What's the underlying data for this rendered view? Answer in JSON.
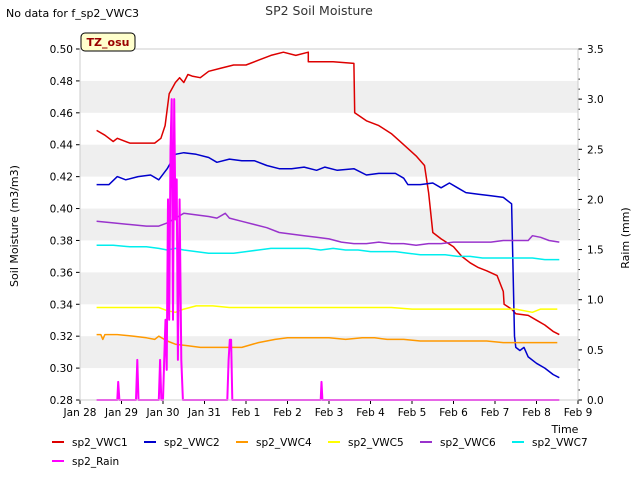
{
  "chart_data": {
    "type": "line",
    "title": "SP2 Soil Moisture",
    "no_data_note": "No data for f_sp2_VWC3",
    "site_badge": "TZ_osu",
    "xlabel": "Time",
    "ylabel": "Soil Moisture (m3/m3)",
    "y2label": "Raim (mm)",
    "xlim": [
      0,
      12
    ],
    "ylim": [
      0.28,
      0.5
    ],
    "y2lim": [
      0.0,
      3.5
    ],
    "grid": "horizontal bands",
    "legend_position": "bottom",
    "x_ticks": [
      {
        "x": 0,
        "label": "Jan 28"
      },
      {
        "x": 1,
        "label": "Jan 29"
      },
      {
        "x": 2,
        "label": "Jan 30"
      },
      {
        "x": 3,
        "label": "Jan 31"
      },
      {
        "x": 4,
        "label": "Feb 1"
      },
      {
        "x": 5,
        "label": "Feb 2"
      },
      {
        "x": 6,
        "label": "Feb 3"
      },
      {
        "x": 7,
        "label": "Feb 4"
      },
      {
        "x": 8,
        "label": "Feb 5"
      },
      {
        "x": 9,
        "label": "Feb 6"
      },
      {
        "x": 10,
        "label": "Feb 7"
      },
      {
        "x": 11,
        "label": "Feb 8"
      },
      {
        "x": 12,
        "label": "Feb 9"
      }
    ],
    "y_ticks": [
      "0.28",
      "0.30",
      "0.32",
      "0.34",
      "0.36",
      "0.38",
      "0.40",
      "0.42",
      "0.44",
      "0.46",
      "0.48",
      "0.50"
    ],
    "y2_ticks": [
      "0.0",
      "0.5",
      "1.0",
      "1.5",
      "2.0",
      "2.5",
      "3.0",
      "3.5"
    ],
    "series": [
      {
        "name": "sp2_VWC1",
        "color": "#dd0000",
        "axis": "left",
        "points": [
          [
            0.4,
            0.449
          ],
          [
            0.6,
            0.446
          ],
          [
            0.8,
            0.442
          ],
          [
            0.9,
            0.444
          ],
          [
            1.2,
            0.441
          ],
          [
            1.6,
            0.441
          ],
          [
            1.8,
            0.441
          ],
          [
            1.95,
            0.444
          ],
          [
            2.05,
            0.452
          ],
          [
            2.15,
            0.472
          ],
          [
            2.3,
            0.479
          ],
          [
            2.4,
            0.482
          ],
          [
            2.5,
            0.479
          ],
          [
            2.6,
            0.484
          ],
          [
            2.7,
            0.483
          ],
          [
            2.9,
            0.482
          ],
          [
            3.1,
            0.486
          ],
          [
            3.4,
            0.488
          ],
          [
            3.7,
            0.49
          ],
          [
            4.0,
            0.49
          ],
          [
            4.3,
            0.493
          ],
          [
            4.6,
            0.496
          ],
          [
            4.9,
            0.498
          ],
          [
            5.2,
            0.496
          ],
          [
            5.5,
            0.498
          ],
          [
            5.5,
            0.492
          ],
          [
            5.8,
            0.492
          ],
          [
            6.1,
            0.492
          ],
          [
            6.6,
            0.491
          ],
          [
            6.62,
            0.46
          ],
          [
            6.9,
            0.455
          ],
          [
            7.2,
            0.452
          ],
          [
            7.5,
            0.447
          ],
          [
            7.8,
            0.44
          ],
          [
            8.1,
            0.433
          ],
          [
            8.3,
            0.427
          ],
          [
            8.4,
            0.41
          ],
          [
            8.5,
            0.385
          ],
          [
            8.7,
            0.381
          ],
          [
            9.0,
            0.376
          ],
          [
            9.2,
            0.37
          ],
          [
            9.4,
            0.366
          ],
          [
            9.6,
            0.363
          ],
          [
            9.8,
            0.361
          ],
          [
            10.05,
            0.358
          ],
          [
            10.2,
            0.348
          ],
          [
            10.22,
            0.34
          ],
          [
            10.4,
            0.337
          ],
          [
            10.5,
            0.334
          ],
          [
            10.8,
            0.333
          ],
          [
            11.0,
            0.33
          ],
          [
            11.2,
            0.327
          ],
          [
            11.4,
            0.323
          ],
          [
            11.55,
            0.321
          ]
        ]
      },
      {
        "name": "sp2_VWC2",
        "color": "#0000cc",
        "axis": "left",
        "points": [
          [
            0.4,
            0.415
          ],
          [
            0.7,
            0.415
          ],
          [
            0.9,
            0.42
          ],
          [
            1.1,
            0.418
          ],
          [
            1.4,
            0.42
          ],
          [
            1.7,
            0.421
          ],
          [
            1.9,
            0.418
          ],
          [
            2.1,
            0.425
          ],
          [
            2.3,
            0.434
          ],
          [
            2.5,
            0.435
          ],
          [
            2.8,
            0.434
          ],
          [
            3.1,
            0.432
          ],
          [
            3.3,
            0.429
          ],
          [
            3.6,
            0.431
          ],
          [
            3.9,
            0.43
          ],
          [
            4.2,
            0.43
          ],
          [
            4.5,
            0.427
          ],
          [
            4.8,
            0.425
          ],
          [
            5.1,
            0.425
          ],
          [
            5.4,
            0.426
          ],
          [
            5.7,
            0.424
          ],
          [
            5.9,
            0.426
          ],
          [
            6.2,
            0.424
          ],
          [
            6.6,
            0.425
          ],
          [
            6.9,
            0.421
          ],
          [
            7.2,
            0.422
          ],
          [
            7.6,
            0.422
          ],
          [
            7.8,
            0.419
          ],
          [
            7.9,
            0.415
          ],
          [
            8.2,
            0.415
          ],
          [
            8.5,
            0.416
          ],
          [
            8.7,
            0.413
          ],
          [
            8.9,
            0.416
          ],
          [
            9.1,
            0.413
          ],
          [
            9.3,
            0.41
          ],
          [
            9.6,
            0.409
          ],
          [
            9.9,
            0.408
          ],
          [
            10.2,
            0.407
          ],
          [
            10.4,
            0.403
          ],
          [
            10.47,
            0.32
          ],
          [
            10.5,
            0.313
          ],
          [
            10.6,
            0.311
          ],
          [
            10.7,
            0.313
          ],
          [
            10.8,
            0.307
          ],
          [
            11.0,
            0.303
          ],
          [
            11.2,
            0.3
          ],
          [
            11.4,
            0.296
          ],
          [
            11.55,
            0.294
          ]
        ]
      },
      {
        "name": "sp2_VWC4",
        "color": "#ff9900",
        "axis": "left",
        "points": [
          [
            0.4,
            0.321
          ],
          [
            0.5,
            0.321
          ],
          [
            0.55,
            0.318
          ],
          [
            0.6,
            0.321
          ],
          [
            0.9,
            0.321
          ],
          [
            1.3,
            0.32
          ],
          [
            1.6,
            0.319
          ],
          [
            1.8,
            0.318
          ],
          [
            1.9,
            0.32
          ],
          [
            2.1,
            0.317
          ],
          [
            2.3,
            0.315
          ],
          [
            2.6,
            0.314
          ],
          [
            2.9,
            0.313
          ],
          [
            3.2,
            0.313
          ],
          [
            3.5,
            0.313
          ],
          [
            3.9,
            0.313
          ],
          [
            4.3,
            0.316
          ],
          [
            4.7,
            0.318
          ],
          [
            5.0,
            0.319
          ],
          [
            5.4,
            0.319
          ],
          [
            5.7,
            0.319
          ],
          [
            6.0,
            0.319
          ],
          [
            6.4,
            0.318
          ],
          [
            6.8,
            0.319
          ],
          [
            7.1,
            0.319
          ],
          [
            7.4,
            0.318
          ],
          [
            7.8,
            0.318
          ],
          [
            8.2,
            0.317
          ],
          [
            8.6,
            0.317
          ],
          [
            9.0,
            0.317
          ],
          [
            9.4,
            0.317
          ],
          [
            9.8,
            0.317
          ],
          [
            10.2,
            0.316
          ],
          [
            10.6,
            0.316
          ],
          [
            11.0,
            0.316
          ],
          [
            11.5,
            0.316
          ]
        ]
      },
      {
        "name": "sp2_VWC5",
        "color": "#ffff00",
        "axis": "left",
        "points": [
          [
            0.4,
            0.338
          ],
          [
            0.8,
            0.338
          ],
          [
            1.2,
            0.338
          ],
          [
            1.6,
            0.338
          ],
          [
            1.9,
            0.338
          ],
          [
            2.1,
            0.336
          ],
          [
            2.3,
            0.335
          ],
          [
            2.5,
            0.337
          ],
          [
            2.8,
            0.339
          ],
          [
            3.2,
            0.339
          ],
          [
            3.6,
            0.338
          ],
          [
            4.0,
            0.338
          ],
          [
            4.5,
            0.338
          ],
          [
            5.0,
            0.338
          ],
          [
            5.5,
            0.338
          ],
          [
            6.0,
            0.338
          ],
          [
            6.5,
            0.338
          ],
          [
            7.0,
            0.338
          ],
          [
            7.5,
            0.338
          ],
          [
            8.0,
            0.337
          ],
          [
            8.5,
            0.337
          ],
          [
            9.0,
            0.337
          ],
          [
            9.5,
            0.337
          ],
          [
            10.0,
            0.337
          ],
          [
            10.5,
            0.337
          ],
          [
            10.9,
            0.335
          ],
          [
            11.1,
            0.337
          ],
          [
            11.5,
            0.337
          ]
        ]
      },
      {
        "name": "sp2_VWC6",
        "color": "#9933cc",
        "axis": "left",
        "points": [
          [
            0.4,
            0.392
          ],
          [
            0.8,
            0.391
          ],
          [
            1.2,
            0.39
          ],
          [
            1.6,
            0.389
          ],
          [
            1.9,
            0.389
          ],
          [
            2.1,
            0.391
          ],
          [
            2.3,
            0.394
          ],
          [
            2.5,
            0.397
          ],
          [
            2.8,
            0.396
          ],
          [
            3.1,
            0.395
          ],
          [
            3.3,
            0.394
          ],
          [
            3.5,
            0.397
          ],
          [
            3.6,
            0.394
          ],
          [
            3.9,
            0.392
          ],
          [
            4.2,
            0.39
          ],
          [
            4.5,
            0.388
          ],
          [
            4.8,
            0.385
          ],
          [
            5.1,
            0.384
          ],
          [
            5.4,
            0.383
          ],
          [
            5.7,
            0.382
          ],
          [
            6.0,
            0.381
          ],
          [
            6.3,
            0.379
          ],
          [
            6.6,
            0.378
          ],
          [
            6.9,
            0.378
          ],
          [
            7.2,
            0.379
          ],
          [
            7.5,
            0.378
          ],
          [
            7.8,
            0.378
          ],
          [
            8.1,
            0.377
          ],
          [
            8.4,
            0.378
          ],
          [
            8.7,
            0.378
          ],
          [
            9.0,
            0.379
          ],
          [
            9.3,
            0.379
          ],
          [
            9.6,
            0.379
          ],
          [
            9.9,
            0.379
          ],
          [
            10.2,
            0.38
          ],
          [
            10.5,
            0.38
          ],
          [
            10.8,
            0.38
          ],
          [
            10.9,
            0.383
          ],
          [
            11.1,
            0.382
          ],
          [
            11.3,
            0.38
          ],
          [
            11.55,
            0.379
          ]
        ]
      },
      {
        "name": "sp2_VWC7",
        "color": "#00eeee",
        "axis": "left",
        "points": [
          [
            0.4,
            0.377
          ],
          [
            0.8,
            0.377
          ],
          [
            1.2,
            0.376
          ],
          [
            1.6,
            0.376
          ],
          [
            1.9,
            0.375
          ],
          [
            2.1,
            0.374
          ],
          [
            2.3,
            0.375
          ],
          [
            2.5,
            0.374
          ],
          [
            2.8,
            0.373
          ],
          [
            3.1,
            0.372
          ],
          [
            3.4,
            0.372
          ],
          [
            3.7,
            0.372
          ],
          [
            4.0,
            0.373
          ],
          [
            4.3,
            0.374
          ],
          [
            4.6,
            0.375
          ],
          [
            4.9,
            0.375
          ],
          [
            5.2,
            0.375
          ],
          [
            5.5,
            0.375
          ],
          [
            5.8,
            0.374
          ],
          [
            6.1,
            0.375
          ],
          [
            6.4,
            0.374
          ],
          [
            6.7,
            0.374
          ],
          [
            7.0,
            0.373
          ],
          [
            7.3,
            0.373
          ],
          [
            7.6,
            0.373
          ],
          [
            7.9,
            0.372
          ],
          [
            8.2,
            0.371
          ],
          [
            8.5,
            0.371
          ],
          [
            8.8,
            0.371
          ],
          [
            9.1,
            0.37
          ],
          [
            9.4,
            0.37
          ],
          [
            9.7,
            0.369
          ],
          [
            10.0,
            0.369
          ],
          [
            10.3,
            0.369
          ],
          [
            10.6,
            0.369
          ],
          [
            10.9,
            0.369
          ],
          [
            11.2,
            0.368
          ],
          [
            11.55,
            0.368
          ]
        ]
      },
      {
        "name": "sp2_Rain",
        "color": "#ff00ff",
        "axis": "right",
        "points": [
          [
            0.4,
            0.0
          ],
          [
            0.9,
            0.0
          ],
          [
            0.92,
            0.18
          ],
          [
            0.95,
            0.0
          ],
          [
            1.35,
            0.0
          ],
          [
            1.38,
            0.4
          ],
          [
            1.41,
            0.0
          ],
          [
            1.9,
            0.0
          ],
          [
            1.93,
            0.4
          ],
          [
            1.96,
            0.0
          ],
          [
            2.0,
            0.0
          ],
          [
            2.03,
            0.4
          ],
          [
            2.06,
            0.8
          ],
          [
            2.09,
            0.3
          ],
          [
            2.12,
            2.0
          ],
          [
            2.15,
            0.8
          ],
          [
            2.18,
            2.5
          ],
          [
            2.21,
            3.0
          ],
          [
            2.24,
            0.8
          ],
          [
            2.27,
            3.0
          ],
          [
            2.3,
            1.8
          ],
          [
            2.33,
            2.2
          ],
          [
            2.36,
            0.4
          ],
          [
            2.4,
            2.0
          ],
          [
            2.44,
            0.4
          ],
          [
            2.48,
            0.0
          ],
          [
            3.55,
            0.0
          ],
          [
            3.58,
            0.4
          ],
          [
            3.61,
            0.6
          ],
          [
            3.64,
            0.6
          ],
          [
            3.67,
            0.0
          ],
          [
            5.8,
            0.0
          ],
          [
            5.82,
            0.18
          ],
          [
            5.84,
            0.0
          ],
          [
            11.55,
            0.0
          ]
        ]
      }
    ]
  }
}
